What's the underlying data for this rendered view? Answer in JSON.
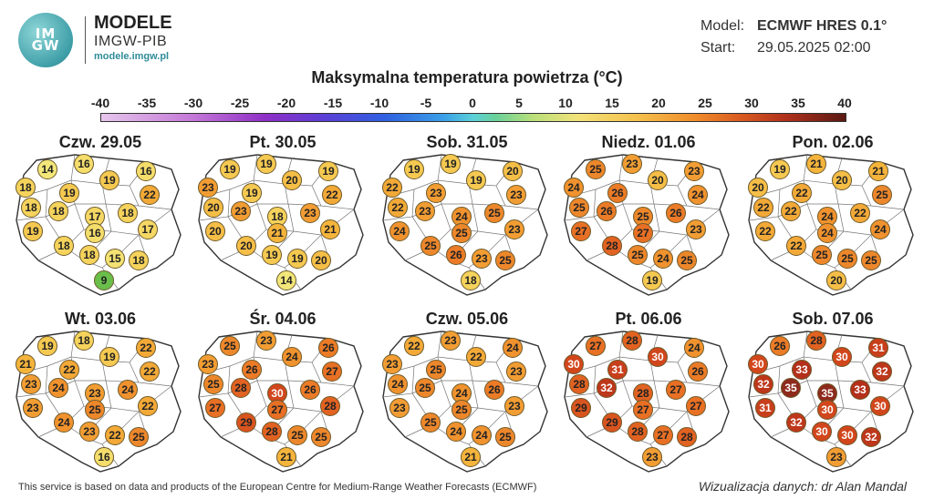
{
  "brand": {
    "logo_text_top": "IM",
    "logo_text_bottom": "GW",
    "title": "MODELE",
    "subtitle": "IMGW-PIB",
    "url": "modele.imgw.pl"
  },
  "meta": {
    "model_label": "Model:",
    "model_value": "ECMWF HRES 0.1°",
    "start_label": "Start:",
    "start_value": "29.05.2025 02:00"
  },
  "title": "Maksymalna temperatura powietrza (°C)",
  "scale": {
    "labels": [
      "-40",
      "-35",
      "-30",
      "-25",
      "-20",
      "-15",
      "-10",
      "-5",
      "0",
      "5",
      "10",
      "15",
      "20",
      "25",
      "30",
      "35",
      "40"
    ]
  },
  "days": [
    {
      "title": "Czw. 29.05",
      "values": [
        14,
        16,
        16,
        19,
        22,
        18,
        19,
        18,
        18,
        17,
        18,
        19,
        16,
        17,
        18,
        18,
        15,
        18,
        9
      ]
    },
    {
      "title": "Pt. 30.05",
      "values": [
        19,
        19,
        19,
        20,
        22,
        23,
        19,
        20,
        23,
        18,
        23,
        20,
        21,
        21,
        20,
        19,
        19,
        20,
        14
      ]
    },
    {
      "title": "Sob. 31.05",
      "values": [
        19,
        19,
        20,
        19,
        23,
        22,
        23,
        22,
        23,
        24,
        25,
        24,
        25,
        23,
        25,
        26,
        23,
        25,
        18
      ]
    },
    {
      "title": "Niedz. 01.06",
      "values": [
        25,
        23,
        23,
        20,
        24,
        24,
        26,
        25,
        26,
        25,
        26,
        27,
        27,
        23,
        28,
        25,
        24,
        25,
        19
      ]
    },
    {
      "title": "Pon. 02.06",
      "values": [
        19,
        21,
        21,
        20,
        25,
        20,
        22,
        22,
        22,
        24,
        22,
        22,
        24,
        24,
        22,
        25,
        25,
        25,
        20
      ]
    },
    {
      "title": "Wt. 03.06",
      "values": [
        19,
        18,
        22,
        19,
        22,
        21,
        22,
        23,
        24,
        23,
        24,
        23,
        25,
        22,
        24,
        23,
        22,
        25,
        16
      ]
    },
    {
      "title": "Śr. 04.06",
      "values": [
        25,
        23,
        26,
        24,
        27,
        23,
        26,
        25,
        28,
        30,
        26,
        27,
        27,
        28,
        29,
        28,
        25,
        25,
        21
      ]
    },
    {
      "title": "Czw. 05.06",
      "values": [
        22,
        23,
        24,
        22,
        23,
        23,
        25,
        24,
        25,
        24,
        26,
        23,
        25,
        23,
        25,
        24,
        24,
        25,
        21
      ]
    },
    {
      "title": "Pt. 06.06",
      "values": [
        27,
        28,
        24,
        30,
        26,
        30,
        31,
        28,
        32,
        28,
        27,
        29,
        27,
        27,
        29,
        28,
        27,
        28,
        23
      ]
    },
    {
      "title": "Sob. 07.06",
      "values": [
        26,
        28,
        31,
        30,
        32,
        30,
        33,
        32,
        35,
        35,
        33,
        31,
        30,
        30,
        32,
        30,
        30,
        32,
        23
      ]
    }
  ],
  "colors": {
    "stops": [
      {
        "t": 9,
        "c": "#6abf4b"
      },
      {
        "t": 14,
        "c": "#f3e77a"
      },
      {
        "t": 18,
        "c": "#f5d35c"
      },
      {
        "t": 21,
        "c": "#f5b43c"
      },
      {
        "t": 24,
        "c": "#f0922e"
      },
      {
        "t": 27,
        "c": "#e87024"
      },
      {
        "t": 30,
        "c": "#d2461c"
      },
      {
        "t": 33,
        "c": "#b4301a"
      },
      {
        "t": 35,
        "c": "#8e2a1c"
      }
    ]
  },
  "footer": {
    "left": "This service is based on data and products of the European Centre for Medium-Range Weather Forecasts (ECMWF)",
    "right": "Wizualizacja danych: dr Alan Mandal"
  }
}
